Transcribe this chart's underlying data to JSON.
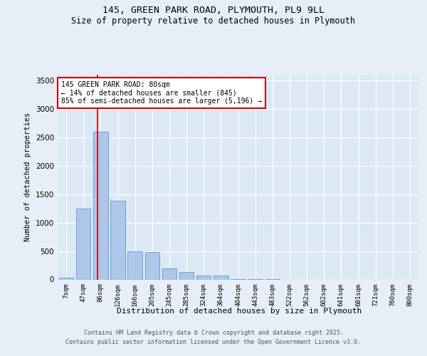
{
  "title1": "145, GREEN PARK ROAD, PLYMOUTH, PL9 9LL",
  "title2": "Size of property relative to detached houses in Plymouth",
  "xlabel": "Distribution of detached houses by size in Plymouth",
  "ylabel": "Number of detached properties",
  "categories": [
    "7sqm",
    "47sqm",
    "86sqm",
    "126sqm",
    "166sqm",
    "205sqm",
    "245sqm",
    "285sqm",
    "324sqm",
    "364sqm",
    "404sqm",
    "443sqm",
    "483sqm",
    "522sqm",
    "562sqm",
    "602sqm",
    "641sqm",
    "681sqm",
    "721sqm",
    "760sqm",
    "800sqm"
  ],
  "bar_heights": [
    30,
    1250,
    2600,
    1380,
    500,
    480,
    200,
    130,
    70,
    70,
    5,
    5,
    5,
    0,
    0,
    0,
    0,
    0,
    0,
    0,
    0
  ],
  "bar_color": "#aec6e8",
  "bar_edge_color": "#5b9bd5",
  "fig_bg_color": "#e8eef8",
  "plot_bg_color": "#dce9f5",
  "red_line_x": 1.83,
  "annotation_text": "145 GREEN PARK ROAD: 80sqm\n← 14% of detached houses are smaller (845)\n85% of semi-detached houses are larger (5,196) →",
  "annotation_box_color": "#ffffff",
  "annotation_border_color": "#cc0000",
  "ylim": [
    0,
    3600
  ],
  "yticks": [
    0,
    500,
    1000,
    1500,
    2000,
    2500,
    3000,
    3500
  ],
  "footer1": "Contains HM Land Registry data © Crown copyright and database right 2025.",
  "footer2": "Contains public sector information licensed under the Open Government Licence v3.0."
}
